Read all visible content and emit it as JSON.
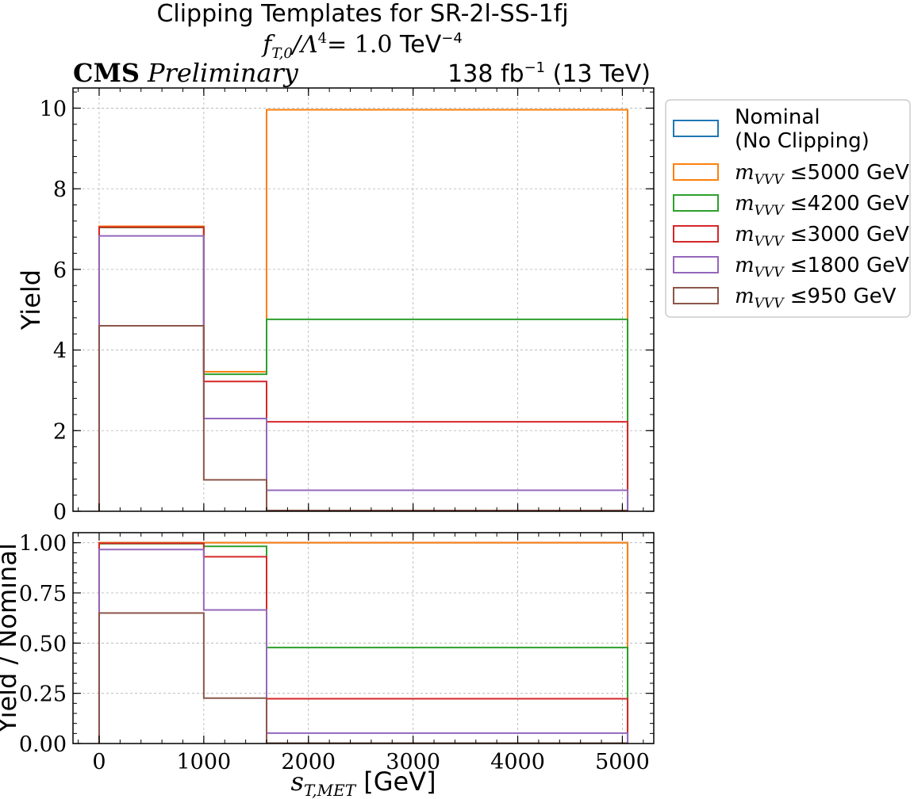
{
  "figure": {
    "title_line1": "Clipping Templates for SR-2l-SS-1fj",
    "title_line2_math": "f",
    "title_line2_sub": "T,0",
    "title_line2_mid": "/Λ",
    "title_line2_sup": "4",
    "title_line2_eq": "= 1.0 ",
    "title_line2_unit": "TeV",
    "title_line2_unit_sup": "−4",
    "cms_label": "CMS",
    "preliminary_label": "Preliminary",
    "lumi_pre": "138 fb",
    "lumi_sup": "−1",
    "lumi_post": " (13 TeV)"
  },
  "colors": {
    "nominal": "#1f77b4",
    "m5000": "#ff7f0e",
    "m4200": "#2ca02c",
    "m3000": "#d62728",
    "m1800": "#9467bd",
    "m950": "#8c564b"
  },
  "legend": {
    "placement": "outside-right-top",
    "entries": [
      {
        "key": "nominal",
        "line1": "Nominal",
        "line2": "(No Clipping)"
      },
      {
        "key": "m5000",
        "math": "m",
        "sub": "VVV",
        "text": " ≤5000 GeV"
      },
      {
        "key": "m4200",
        "math": "m",
        "sub": "VVV",
        "text": " ≤4200 GeV"
      },
      {
        "key": "m3000",
        "math": "m",
        "sub": "VVV",
        "text": " ≤3000 GeV"
      },
      {
        "key": "m1800",
        "math": "m",
        "sub": "VVV",
        "text": " ≤1800 GeV"
      },
      {
        "key": "m950",
        "math": "m",
        "sub": "VVV",
        "text": " ≤950 GeV"
      }
    ]
  },
  "chart_data": [
    {
      "type": "step",
      "panel": "main",
      "ylabel": "Yield",
      "xlim": [
        -250,
        5300
      ],
      "ylim": [
        0,
        10.5
      ],
      "yticks": [
        0,
        2,
        4,
        6,
        8,
        10
      ],
      "ytick_labels": [
        "0",
        "2",
        "4",
        "6",
        "8",
        "10"
      ],
      "grid": true,
      "bin_edges": [
        0,
        1000,
        1600,
        5050
      ],
      "series": [
        {
          "key": "nominal",
          "name": "Nominal (No Clipping)",
          "values": [
            7.07,
            3.46,
            9.96
          ]
        },
        {
          "key": "m5000",
          "name": "m_VVV ≤5000 GeV",
          "values": [
            7.07,
            3.46,
            9.96
          ]
        },
        {
          "key": "m4200",
          "name": "m_VVV ≤4200 GeV",
          "values": [
            7.04,
            3.4,
            4.76
          ]
        },
        {
          "key": "m3000",
          "name": "m_VVV ≤3000 GeV",
          "values": [
            7.05,
            3.22,
            2.22
          ]
        },
        {
          "key": "m1800",
          "name": "m_VVV ≤1800 GeV",
          "values": [
            6.83,
            2.3,
            0.52
          ]
        },
        {
          "key": "m950",
          "name": "m_VVV ≤950 GeV",
          "values": [
            4.6,
            0.78,
            0.02
          ]
        }
      ]
    },
    {
      "type": "step",
      "panel": "ratio",
      "ylabel": "Yield / Nominal",
      "xlabel_math": "s",
      "xlabel_sub": "T,MET",
      "xlabel_unit": " [GeV]",
      "xlim": [
        -250,
        5300
      ],
      "ylim": [
        0,
        1.05
      ],
      "xticks": [
        0,
        1000,
        2000,
        3000,
        4000,
        5000
      ],
      "xtick_labels": [
        "0",
        "1000",
        "2000",
        "3000",
        "4000",
        "5000"
      ],
      "yticks": [
        0,
        0.25,
        0.5,
        0.75,
        1.0
      ],
      "ytick_labels": [
        "0.00",
        "0.25",
        "0.50",
        "0.75",
        "1.00"
      ],
      "grid": true,
      "bin_edges": [
        0,
        1000,
        1600,
        5050
      ],
      "series": [
        {
          "key": "nominal",
          "name": "Nominal (No Clipping)",
          "values": [
            1.0,
            1.0,
            1.0
          ]
        },
        {
          "key": "m5000",
          "name": "m_VVV ≤5000 GeV",
          "values": [
            1.0,
            1.0,
            1.0
          ]
        },
        {
          "key": "m4200",
          "name": "m_VVV ≤4200 GeV",
          "values": [
            0.995,
            0.982,
            0.478
          ]
        },
        {
          "key": "m3000",
          "name": "m_VVV ≤3000 GeV",
          "values": [
            0.997,
            0.93,
            0.223
          ]
        },
        {
          "key": "m1800",
          "name": "m_VVV ≤1800 GeV",
          "values": [
            0.966,
            0.665,
            0.052
          ]
        },
        {
          "key": "m950",
          "name": "m_VVV ≤950 GeV",
          "values": [
            0.65,
            0.226,
            0.002
          ]
        }
      ]
    }
  ]
}
